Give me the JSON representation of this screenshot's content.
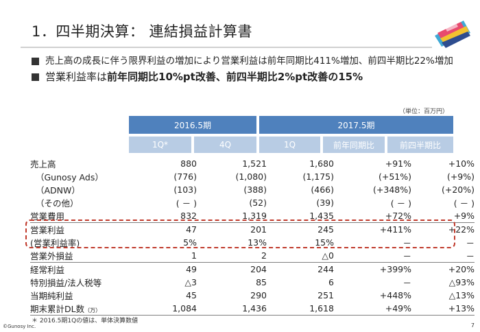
{
  "slide": {
    "title": "1．四半期決算： 連結損益計算書",
    "bullets": [
      "売上高の成長に伴う限界利益の増加により営業利益は前年同期比411%増加、前四半期比22%増加"
    ],
    "bullet2_prefix": "営業利益率は",
    "bullet2_bold": "前年同期比10%pt改善、前四半期比2%pt改善の15%",
    "unit_note": "（単位：百万円）",
    "footnote": "＊ 2016.5期1Qの値は、単体決算数値",
    "copyright": "©Gunosy Inc.",
    "page_number": "7"
  },
  "table": {
    "groups": [
      "2016.5期",
      "2017.5期"
    ],
    "columns": [
      "1Q*",
      "4Q",
      "1Q",
      "前年同期比",
      "前四半期比"
    ],
    "rows": [
      {
        "label": "売上高",
        "unit": "",
        "cells": [
          "880",
          "1,521",
          "1,680",
          "+91%",
          "+10%"
        ]
      },
      {
        "label": "（Gunosy Ads）",
        "unit": "",
        "cells": [
          "(776)",
          "(1,080)",
          "(1,175)",
          "(+51%)",
          "(+9%)"
        ]
      },
      {
        "label": "（ADNW）",
        "unit": "",
        "cells": [
          "(103)",
          "(388)",
          "(466)",
          "(+348%)",
          "(+20%)"
        ]
      },
      {
        "label": "（その他）",
        "unit": "",
        "cells": [
          "( － )",
          "(52)",
          "(39)",
          "( － )",
          "( － )"
        ]
      },
      {
        "label": "営業費用",
        "unit": "",
        "cells": [
          "832",
          "1,319",
          "1,435",
          "+72%",
          "+9%"
        ]
      },
      {
        "label": "営業利益",
        "unit": "",
        "cells": [
          "47",
          "201",
          "245",
          "+411%",
          "+22%"
        ]
      },
      {
        "label": "(営業利益率)",
        "unit": "",
        "cells": [
          "5%",
          "13%",
          "15%",
          "－",
          "－"
        ]
      },
      {
        "label": "営業外損益",
        "unit": "",
        "cells": [
          "1",
          "2",
          "△0",
          "－",
          "－"
        ]
      },
      {
        "label": "経常利益",
        "unit": "",
        "cells": [
          "49",
          "204",
          "244",
          "+399%",
          "+20%"
        ]
      },
      {
        "label": "特別損益/法人税等",
        "unit": "",
        "cells": [
          "△3",
          "85",
          "6",
          "－",
          "△93%"
        ]
      },
      {
        "label": "当期純利益",
        "unit": "",
        "cells": [
          "45",
          "290",
          "251",
          "+448%",
          "△13%"
        ]
      },
      {
        "label": "期末累計DL数",
        "unit": "（万）",
        "cells": [
          "1,084",
          "1,436",
          "1,618",
          "+49%",
          "+13%"
        ]
      }
    ]
  },
  "colors": {
    "header_dark": "#4f81bd",
    "header_light": "#b8cce4",
    "highlight": "#c0392b"
  },
  "icons": {
    "logo": "gunosy-logo-icon"
  }
}
